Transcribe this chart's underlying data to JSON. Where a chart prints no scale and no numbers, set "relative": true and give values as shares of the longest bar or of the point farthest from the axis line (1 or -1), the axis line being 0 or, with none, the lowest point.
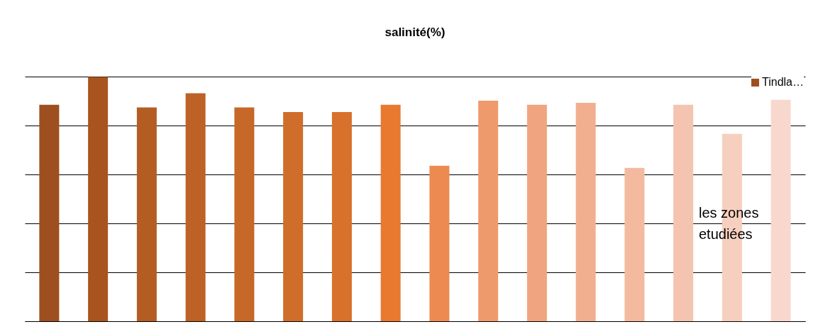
{
  "chart_data": {
    "type": "bar",
    "title": "salinité(%)",
    "relative": true,
    "grid": "y",
    "legend": "top right",
    "categories": [
      null,
      null,
      null,
      null,
      null,
      null,
      null,
      null,
      null,
      null,
      null,
      null,
      null,
      null,
      null,
      null
    ],
    "series": [
      {
        "name": "Tindla…",
        "values": [
          0.886,
          1,
          0.875,
          0.933,
          0.875,
          0.856,
          0.856,
          0.886,
          0.636,
          0.903,
          0.886,
          0.894,
          0.628,
          0.886,
          0.767,
          0.906
        ],
        "colors": [
          "#9e4f20",
          "#a9541f",
          "#b45d23",
          "#bd6126",
          "#c66828",
          "#cf6d2a",
          "#d8712b",
          "#e8792f",
          "#ec8a52",
          "#ee9a6c",
          "#f0a47f",
          "#f1af8f",
          "#f3baa0",
          "#f4c4b0",
          "#f6cfbf",
          "#f8d8cd"
        ]
      }
    ],
    "annotations": [
      "les zones etudiées"
    ]
  }
}
